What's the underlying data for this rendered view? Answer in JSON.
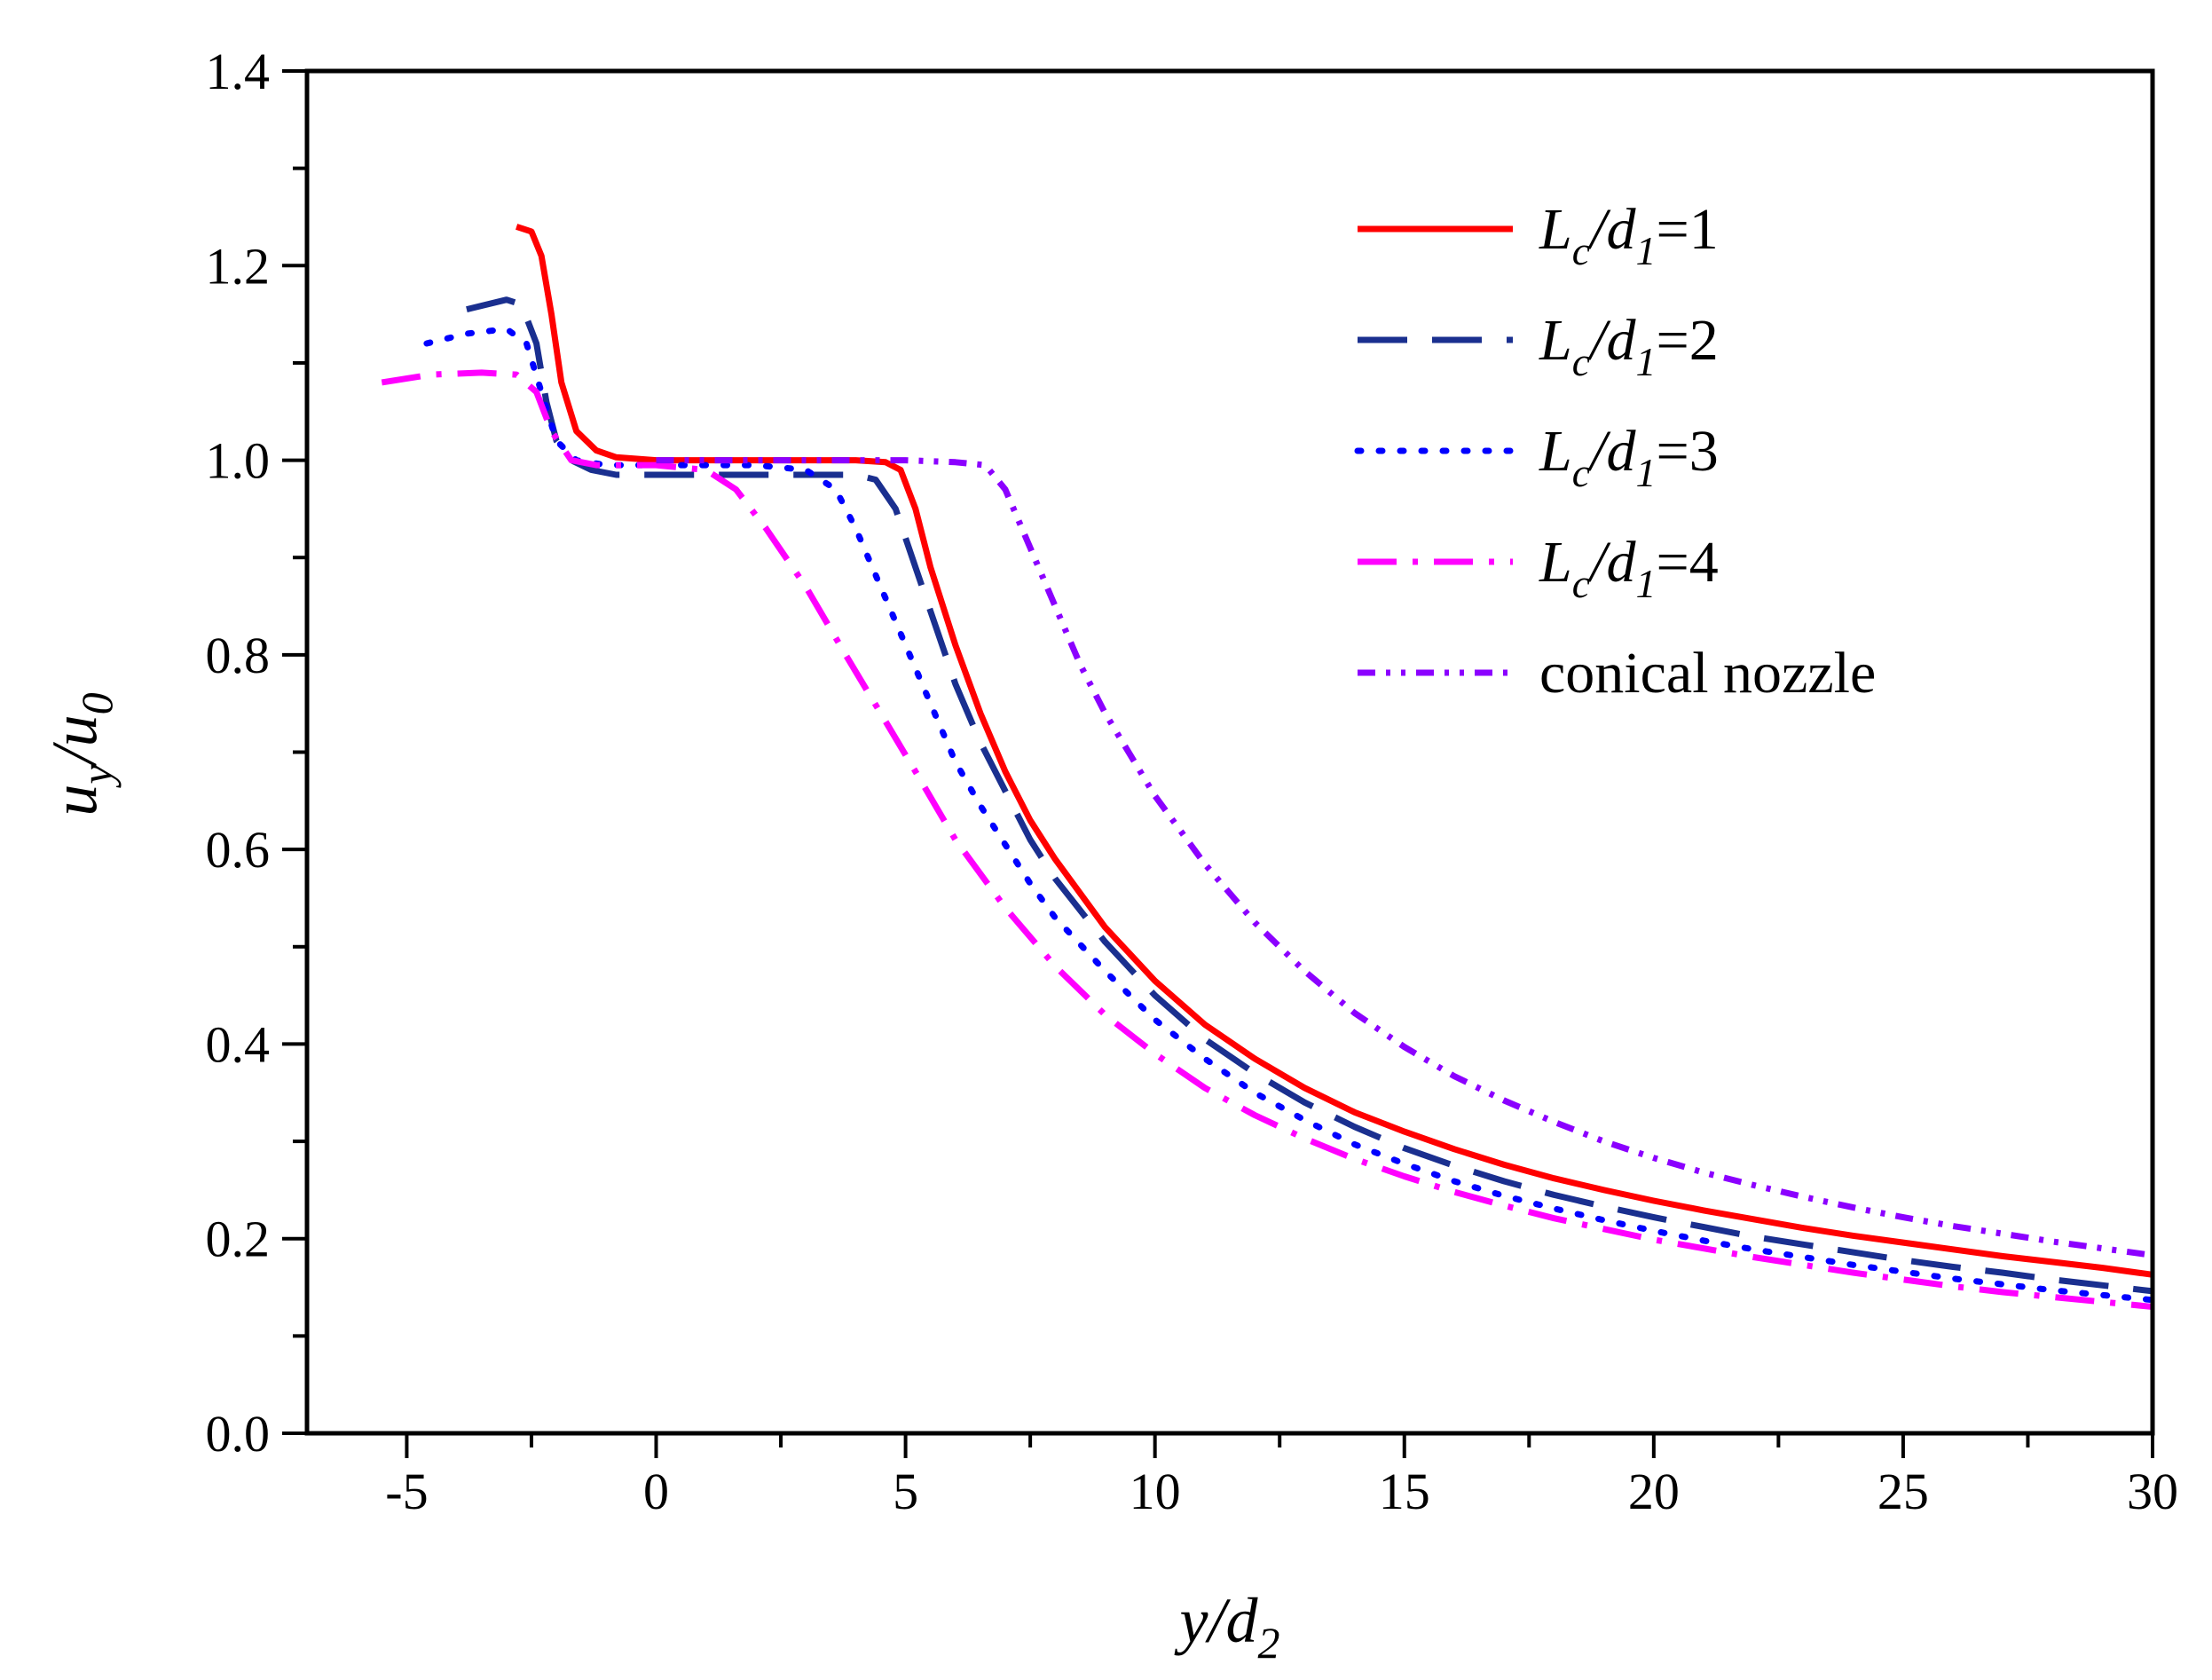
{
  "chart_data": {
    "type": "line",
    "xlabel": {
      "base": "y/d",
      "sub": "2"
    },
    "ylabel": {
      "part1": "u",
      "sub1": "y",
      "part2": "/u",
      "sub2": "0"
    },
    "xlim": [
      -7,
      30
    ],
    "ylim": [
      0.0,
      1.4
    ],
    "xticks": [
      {
        "v": -5,
        "label": "-5"
      },
      {
        "v": 0,
        "label": "0"
      },
      {
        "v": 5,
        "label": "5"
      },
      {
        "v": 10,
        "label": "10"
      },
      {
        "v": 15,
        "label": "15"
      },
      {
        "v": 20,
        "label": "20"
      },
      {
        "v": 25,
        "label": "25"
      },
      {
        "v": 30,
        "label": "30"
      }
    ],
    "yticks": [
      {
        "v": 0.0,
        "label": "0.0"
      },
      {
        "v": 0.2,
        "label": "0.2"
      },
      {
        "v": 0.4,
        "label": "0.4"
      },
      {
        "v": 0.6,
        "label": "0.6"
      },
      {
        "v": 0.8,
        "label": "0.8"
      },
      {
        "v": 1.0,
        "label": "1.0"
      },
      {
        "v": 1.2,
        "label": "1.2"
      },
      {
        "v": 1.4,
        "label": "1.4"
      }
    ],
    "legend_position": "top-right",
    "series": [
      {
        "name": "Lc/d1=1",
        "label": {
          "L": "L",
          "c": "c",
          "d": "/d",
          "one": "1",
          "eq": "=1"
        },
        "color": "#ff0000",
        "dash": "solid",
        "x": [
          -2.8,
          -2.5,
          -2.3,
          -2.1,
          -1.9,
          -1.6,
          -1.2,
          -0.8,
          0,
          1,
          2,
          3,
          4,
          4.6,
          4.9,
          5.2,
          5.5,
          6,
          6.5,
          7,
          7.5,
          8,
          9,
          10,
          11,
          12,
          13,
          14,
          15,
          16,
          17,
          18,
          19,
          20,
          21,
          22,
          23,
          24,
          25,
          26,
          27,
          28,
          29,
          30
        ],
        "y": [
          1.24,
          1.235,
          1.21,
          1.15,
          1.08,
          1.03,
          1.01,
          1.003,
          1.0,
          1.0,
          1.0,
          1.0,
          1.0,
          0.998,
          0.99,
          0.95,
          0.89,
          0.81,
          0.74,
          0.68,
          0.63,
          0.59,
          0.52,
          0.465,
          0.42,
          0.385,
          0.355,
          0.33,
          0.31,
          0.292,
          0.276,
          0.262,
          0.25,
          0.239,
          0.229,
          0.22,
          0.211,
          0.203,
          0.196,
          0.189,
          0.182,
          0.176,
          0.17,
          0.163
        ]
      },
      {
        "name": "Lc/d1=2",
        "label": {
          "L": "L",
          "c": "c",
          "d": "/d",
          "one": "1",
          "eq": "=2"
        },
        "color": "#1a2f8f",
        "dash": "56 28",
        "x": [
          -3.8,
          -3.0,
          -2.7,
          -2.4,
          -2.2,
          -2.0,
          -1.7,
          -1.3,
          -0.8,
          0,
          1,
          2,
          3,
          4,
          4.4,
          4.8,
          5.2,
          5.6,
          6,
          6.5,
          7,
          7.5,
          8,
          9,
          10,
          11,
          12,
          13,
          14,
          15,
          16,
          17,
          18,
          19,
          20,
          21,
          22,
          23,
          24,
          25,
          26,
          27,
          28,
          29,
          30
        ],
        "y": [
          1.155,
          1.165,
          1.16,
          1.12,
          1.06,
          1.02,
          1.0,
          0.99,
          0.985,
          0.985,
          0.985,
          0.985,
          0.985,
          0.985,
          0.98,
          0.95,
          0.89,
          0.83,
          0.77,
          0.71,
          0.66,
          0.61,
          0.57,
          0.505,
          0.45,
          0.405,
          0.37,
          0.34,
          0.315,
          0.293,
          0.275,
          0.259,
          0.245,
          0.233,
          0.222,
          0.212,
          0.202,
          0.194,
          0.186,
          0.178,
          0.171,
          0.165,
          0.158,
          0.152,
          0.146
        ]
      },
      {
        "name": "Lc/d1=3",
        "label": {
          "L": "L",
          "c": "c",
          "d": "/d",
          "one": "1",
          "eq": "=3"
        },
        "color": "#0000ff",
        "dash": "4 20",
        "x": [
          -4.6,
          -3.8,
          -3.0,
          -2.6,
          -2.3,
          -2.0,
          -1.6,
          -1.0,
          0,
          1,
          2,
          3,
          3.6,
          4.0,
          4.5,
          5,
          5.5,
          6,
          6.5,
          7,
          7.5,
          8,
          9,
          10,
          11,
          12,
          13,
          14,
          15,
          16,
          17,
          18,
          19,
          20,
          21,
          22,
          23,
          24,
          25,
          26,
          27,
          28,
          29,
          30
        ],
        "y": [
          1.12,
          1.13,
          1.135,
          1.12,
          1.07,
          1.02,
          1.0,
          0.995,
          0.995,
          0.995,
          0.995,
          0.99,
          0.97,
          0.93,
          0.87,
          0.81,
          0.75,
          0.69,
          0.645,
          0.605,
          0.565,
          0.53,
          0.475,
          0.425,
          0.385,
          0.35,
          0.322,
          0.297,
          0.277,
          0.259,
          0.244,
          0.231,
          0.219,
          0.208,
          0.198,
          0.189,
          0.181,
          0.173,
          0.166,
          0.159,
          0.153,
          0.147,
          0.142,
          0.137
        ]
      },
      {
        "name": "Lc/d1=4",
        "label": {
          "L": "L",
          "c": "c",
          "d": "/d",
          "one": "1",
          "eq": "=4"
        },
        "color": "#ff00ff",
        "dash": "44 18 6 18",
        "x": [
          -5.5,
          -4.5,
          -3.5,
          -2.8,
          -2.4,
          -2.1,
          -1.7,
          -1.2,
          0,
          1,
          1.6,
          2.2,
          3,
          3.8,
          4.5,
          5.2,
          6,
          7,
          8,
          9,
          10,
          11,
          12,
          13,
          14,
          15,
          16,
          17,
          18,
          19,
          20,
          21,
          22,
          23,
          24,
          25,
          26,
          27,
          28,
          29,
          30
        ],
        "y": [
          1.08,
          1.088,
          1.09,
          1.088,
          1.07,
          1.03,
          1.0,
          0.995,
          0.995,
          0.99,
          0.97,
          0.93,
          0.87,
          0.8,
          0.74,
          0.68,
          0.61,
          0.54,
          0.48,
          0.43,
          0.39,
          0.355,
          0.327,
          0.303,
          0.282,
          0.264,
          0.248,
          0.234,
          0.221,
          0.21,
          0.199,
          0.19,
          0.181,
          0.173,
          0.165,
          0.158,
          0.151,
          0.145,
          0.14,
          0.135,
          0.13
        ]
      },
      {
        "name": "conical nozzle",
        "label": {
          "text": "conical nozzle"
        },
        "color": "#8b00ff",
        "dash": "20 12 5 12 5 12",
        "x": [
          0,
          1,
          2,
          3,
          4,
          5,
          6,
          6.6,
          7,
          7.5,
          8,
          8.5,
          9,
          10,
          11,
          12,
          13,
          14,
          15,
          16,
          17,
          18,
          19,
          20,
          21,
          22,
          23,
          24,
          25,
          26,
          27,
          28,
          29,
          30
        ],
        "y": [
          1.0,
          1.0,
          1.0,
          1.0,
          1.0,
          1.0,
          0.998,
          0.995,
          0.97,
          0.91,
          0.85,
          0.79,
          0.74,
          0.655,
          0.585,
          0.525,
          0.475,
          0.432,
          0.397,
          0.367,
          0.342,
          0.32,
          0.3,
          0.283,
          0.268,
          0.255,
          0.243,
          0.232,
          0.222,
          0.213,
          0.205,
          0.197,
          0.19,
          0.183
        ]
      }
    ]
  }
}
